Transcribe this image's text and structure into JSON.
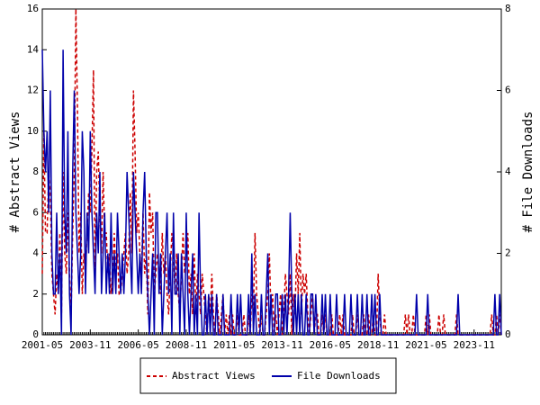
{
  "chart_data": {
    "type": "line",
    "x": [
      "2001-05",
      "2001-06",
      "2001-07",
      "2001-08",
      "2001-09",
      "2001-10",
      "2001-11",
      "2001-12",
      "2002-01",
      "2002-02",
      "2002-03",
      "2002-04",
      "2002-05",
      "2002-06",
      "2002-07",
      "2002-08",
      "2002-09",
      "2002-10",
      "2002-11",
      "2002-12",
      "2003-01",
      "2003-02",
      "2003-03",
      "2003-04",
      "2003-05",
      "2003-06",
      "2003-07",
      "2003-08",
      "2003-09",
      "2003-10",
      "2003-11",
      "2003-12",
      "2004-01",
      "2004-02",
      "2004-03",
      "2004-04",
      "2004-05",
      "2004-06",
      "2004-07",
      "2004-08",
      "2004-09",
      "2004-10",
      "2004-11",
      "2004-12",
      "2005-01",
      "2005-02",
      "2005-03",
      "2005-04",
      "2005-05",
      "2005-06",
      "2005-07",
      "2005-08",
      "2005-09",
      "2005-10",
      "2005-11",
      "2005-12",
      "2006-01",
      "2006-02",
      "2006-03",
      "2006-04",
      "2006-05",
      "2006-06",
      "2006-07",
      "2006-08",
      "2006-09",
      "2006-10",
      "2006-11",
      "2006-12",
      "2007-01",
      "2007-02",
      "2007-03",
      "2007-04",
      "2007-05",
      "2007-06",
      "2007-07",
      "2007-08",
      "2007-09",
      "2007-10",
      "2007-11",
      "2007-12",
      "2008-01",
      "2008-02",
      "2008-03",
      "2008-04",
      "2008-05",
      "2008-06",
      "2008-07",
      "2008-08",
      "2008-09",
      "2008-10",
      "2008-11",
      "2008-12",
      "2009-01",
      "2009-02",
      "2009-03",
      "2009-04",
      "2009-05",
      "2009-06",
      "2009-07",
      "2009-08",
      "2009-09",
      "2009-10",
      "2009-11",
      "2009-12",
      "2010-01",
      "2010-02",
      "2010-03",
      "2010-04",
      "2010-05",
      "2010-06",
      "2010-07",
      "2010-08",
      "2010-09",
      "2010-10",
      "2010-11",
      "2010-12",
      "2011-01",
      "2011-02",
      "2011-03",
      "2011-04",
      "2011-05",
      "2011-06",
      "2011-07",
      "2011-08",
      "2011-09",
      "2011-10",
      "2011-11",
      "2011-12",
      "2012-01",
      "2012-02",
      "2012-03",
      "2012-04",
      "2012-05",
      "2012-06",
      "2012-07",
      "2012-08",
      "2012-09",
      "2012-10",
      "2012-11",
      "2012-12",
      "2013-01",
      "2013-02",
      "2013-03",
      "2013-04",
      "2013-05",
      "2013-06",
      "2013-07",
      "2013-08",
      "2013-09",
      "2013-10",
      "2013-11",
      "2013-12",
      "2014-01",
      "2014-02",
      "2014-03",
      "2014-04",
      "2014-05",
      "2014-06",
      "2014-07",
      "2014-08",
      "2014-09",
      "2014-10",
      "2014-11",
      "2014-12",
      "2015-01",
      "2015-02",
      "2015-03",
      "2015-04",
      "2015-05",
      "2015-06",
      "2015-07",
      "2015-08",
      "2015-09",
      "2015-10",
      "2015-11",
      "2015-12",
      "2016-01",
      "2016-02",
      "2016-03",
      "2016-04",
      "2016-05",
      "2016-06",
      "2016-07",
      "2016-08",
      "2016-09",
      "2016-10",
      "2016-11",
      "2016-12",
      "2017-01",
      "2017-02",
      "2017-03",
      "2017-04",
      "2017-05",
      "2017-06",
      "2017-07",
      "2017-08",
      "2017-09",
      "2017-10",
      "2017-11",
      "2017-12",
      "2018-01",
      "2018-02",
      "2018-03",
      "2018-04",
      "2018-05",
      "2018-06",
      "2018-07",
      "2018-08",
      "2018-09",
      "2018-10",
      "2018-11",
      "2018-12",
      "2019-01",
      "2019-02",
      "2019-03",
      "2019-04",
      "2019-05",
      "2019-06",
      "2019-07",
      "2019-08",
      "2019-09",
      "2019-10",
      "2019-11",
      "2019-12",
      "2020-01",
      "2020-02",
      "2020-03",
      "2020-04",
      "2020-05",
      "2020-06",
      "2020-07",
      "2020-08",
      "2020-09",
      "2020-10",
      "2020-11",
      "2020-12",
      "2021-01",
      "2021-02",
      "2021-03",
      "2021-04",
      "2021-05",
      "2021-06",
      "2021-07",
      "2021-08",
      "2021-09",
      "2021-10",
      "2021-11",
      "2021-12",
      "2022-01",
      "2022-02",
      "2022-03",
      "2022-04",
      "2022-05",
      "2022-06",
      "2022-07",
      "2022-08",
      "2022-09",
      "2022-10",
      "2022-11",
      "2022-12",
      "2023-01",
      "2023-02",
      "2023-03",
      "2023-04",
      "2023-05",
      "2023-06",
      "2023-07",
      "2023-08",
      "2023-09",
      "2023-10",
      "2023-11",
      "2023-12",
      "2024-01",
      "2024-02",
      "2024-03",
      "2024-04",
      "2024-05",
      "2024-06",
      "2024-07",
      "2024-08",
      "2024-09",
      "2024-10",
      "2024-11",
      "2024-12",
      "2025-01",
      "2025-02",
      "2025-03",
      "2025-04"
    ],
    "xticks": [
      "2001-05",
      "2003-11",
      "2006-05",
      "2008-11",
      "2011-05",
      "2013-11",
      "2016-05",
      "2018-11",
      "2021-05",
      "2023-11"
    ],
    "ylabel": "# Abstract Views",
    "ylim": [
      0,
      16
    ],
    "yticks": [
      0,
      2,
      4,
      6,
      8,
      10,
      12,
      14,
      16
    ],
    "y2label": "# File Downloads",
    "y2lim": [
      0,
      8
    ],
    "y2ticks": [
      0,
      2,
      4,
      6,
      8
    ],
    "legend": "bottom",
    "series": [
      {
        "name": "Abstract Views",
        "color": "#cc0000",
        "dashed": true,
        "values": [
          3,
          10,
          5,
          5,
          8,
          7,
          3,
          2,
          1,
          3,
          2,
          5,
          1,
          8,
          4,
          3,
          6,
          3,
          1,
          5,
          8,
          16,
          11,
          4,
          6,
          2,
          4,
          3,
          5,
          7,
          6,
          9,
          13,
          3,
          8,
          9,
          6,
          4,
          8,
          5,
          5,
          3,
          4,
          2,
          3,
          5,
          3,
          4,
          2,
          2,
          3,
          4,
          5,
          3,
          4,
          7,
          4,
          12,
          9,
          5,
          6,
          4,
          3,
          6,
          3,
          4,
          1,
          7,
          5,
          6,
          2,
          3,
          4,
          3,
          2,
          5,
          3,
          4,
          2,
          1,
          3,
          5,
          4,
          2,
          4,
          2,
          1,
          3,
          5,
          3,
          4,
          5,
          2,
          3,
          1,
          4,
          1,
          3,
          2,
          1,
          3,
          2,
          1,
          0,
          2,
          1,
          3,
          1,
          0,
          2,
          1,
          0,
          1,
          2,
          0,
          1,
          0,
          1,
          0,
          1,
          0,
          0,
          1,
          0,
          0,
          0,
          1,
          0,
          0,
          1,
          0,
          2,
          1,
          5,
          2,
          1,
          0,
          1,
          0,
          0,
          1,
          2,
          4,
          1,
          2,
          0,
          1,
          0,
          1,
          2,
          0,
          1,
          3,
          2,
          1,
          3,
          0,
          2,
          1,
          4,
          2,
          5,
          1,
          3,
          2,
          3,
          1,
          0,
          1,
          2,
          0,
          1,
          1,
          0,
          0,
          1,
          0,
          1,
          0,
          0,
          0,
          1,
          0,
          0,
          0,
          0,
          1,
          0,
          1,
          0,
          0,
          0,
          0,
          0,
          1,
          0,
          0,
          1,
          0,
          0,
          0,
          1,
          0,
          0,
          1,
          0,
          0,
          1,
          0,
          0,
          3,
          1,
          0,
          0,
          1,
          0,
          0,
          0,
          0,
          0,
          0,
          0,
          0,
          0,
          0,
          0,
          0,
          1,
          0,
          1,
          0,
          0,
          1,
          0,
          0,
          0,
          0,
          0,
          0,
          0,
          1,
          0,
          1,
          0,
          0,
          0,
          0,
          0,
          1,
          0,
          0,
          1,
          0,
          0,
          0,
          0,
          0,
          0,
          0,
          1,
          0,
          0,
          0,
          0,
          0,
          0,
          0,
          0,
          0,
          0,
          0,
          0,
          0,
          0,
          0,
          0,
          0,
          0,
          0,
          0,
          0,
          1,
          0,
          0,
          1,
          0,
          1,
          0
        ]
      },
      {
        "name": "File Downloads",
        "color": "#0000aa",
        "dashed": false,
        "axis": "y2",
        "values": [
          7,
          5,
          4,
          5,
          3,
          6,
          2,
          1,
          1,
          3,
          1,
          2,
          0,
          7,
          3,
          2,
          5,
          1,
          0,
          4,
          6,
          3,
          2,
          1,
          2,
          5,
          4,
          1,
          3,
          2,
          5,
          3,
          2,
          1,
          3,
          2,
          4,
          1,
          2,
          3,
          1,
          2,
          1,
          3,
          1,
          2,
          1,
          3,
          2,
          1,
          2,
          1,
          2,
          4,
          3,
          2,
          1,
          4,
          3,
          2,
          1,
          2,
          1,
          3,
          4,
          2,
          1,
          0,
          1,
          2,
          0,
          3,
          3,
          1,
          2,
          0,
          1,
          2,
          3,
          1,
          2,
          0,
          3,
          1,
          1,
          2,
          0,
          2,
          1,
          0,
          3,
          1,
          0,
          1,
          2,
          0,
          1,
          0,
          3,
          1,
          0,
          0,
          1,
          0,
          1,
          0,
          1,
          0,
          0,
          1,
          0,
          0,
          0,
          1,
          0,
          0,
          0,
          0,
          1,
          0,
          0,
          0,
          1,
          0,
          1,
          0,
          0,
          0,
          0,
          1,
          0,
          2,
          0,
          1,
          0,
          0,
          0,
          1,
          0,
          0,
          1,
          2,
          0,
          1,
          0,
          0,
          1,
          1,
          0,
          0,
          1,
          0,
          1,
          0,
          1,
          3,
          1,
          0,
          1,
          0,
          1,
          0,
          1,
          0,
          0,
          1,
          0,
          0,
          1,
          1,
          0,
          1,
          0,
          0,
          0,
          1,
          0,
          1,
          0,
          0,
          1,
          0,
          0,
          0,
          1,
          0,
          0,
          0,
          0,
          1,
          0,
          0,
          0,
          1,
          0,
          0,
          0,
          1,
          0,
          0,
          1,
          0,
          0,
          1,
          0,
          0,
          1,
          0,
          1,
          0,
          0,
          1,
          0,
          0,
          0,
          0,
          0,
          0,
          0,
          0,
          0,
          0,
          0,
          0,
          0,
          0,
          0,
          0,
          0,
          0,
          0,
          0,
          0,
          0,
          1,
          0,
          0,
          0,
          0,
          0,
          0,
          1,
          0,
          0,
          0,
          0,
          0,
          0,
          0,
          0,
          0,
          0,
          0,
          0,
          0,
          0,
          0,
          0,
          0,
          0,
          1,
          0,
          0,
          0,
          0,
          0,
          0,
          0,
          0,
          0,
          0,
          0,
          0,
          0,
          0,
          0,
          0,
          0,
          0,
          0,
          0,
          0,
          0,
          1,
          0,
          0,
          1,
          0
        ]
      }
    ]
  }
}
